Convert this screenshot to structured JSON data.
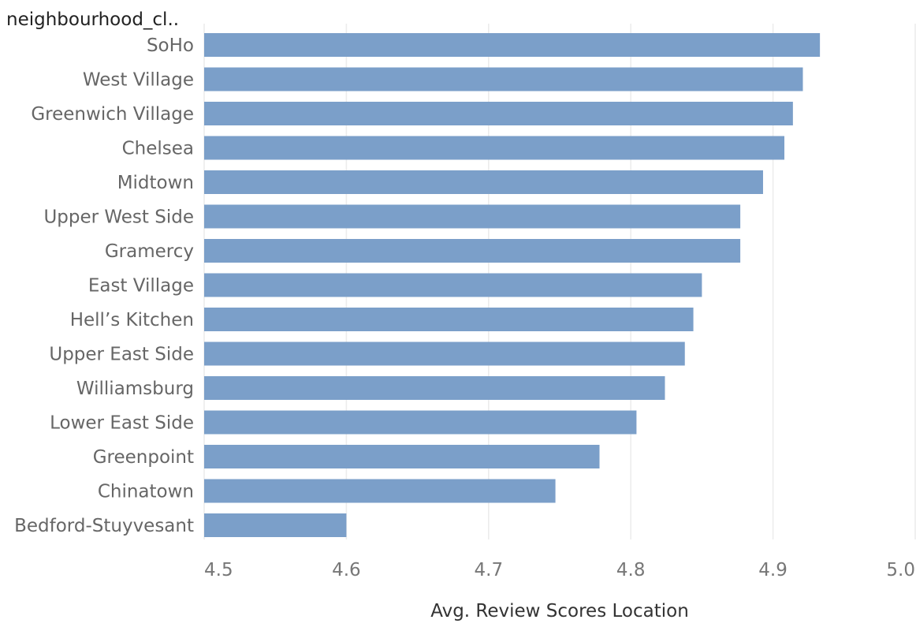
{
  "chart_data": {
    "type": "bar",
    "orientation": "horizontal",
    "row_header": "neighbourhood_cl..",
    "categories": [
      "SoHo",
      "West Village",
      "Greenwich Village",
      "Chelsea",
      "Midtown",
      "Upper West Side",
      "Gramercy",
      "East Village",
      "Hell’s Kitchen",
      "Upper East Side",
      "Williamsburg",
      "Lower East Side",
      "Greenpoint",
      "Chinatown",
      "Bedford-Stuyvesant"
    ],
    "values": [
      4.933,
      4.921,
      4.914,
      4.908,
      4.893,
      4.877,
      4.877,
      4.85,
      4.844,
      4.838,
      4.824,
      4.804,
      4.778,
      4.747,
      4.6
    ],
    "xlabel": "Avg. Review Scores Location",
    "xlim": [
      4.5,
      5.0
    ],
    "xticks": [
      "4.5",
      "4.6",
      "4.7",
      "4.8",
      "4.9",
      "5.0"
    ],
    "bar_color": "#7b9fc9",
    "grid": true
  }
}
